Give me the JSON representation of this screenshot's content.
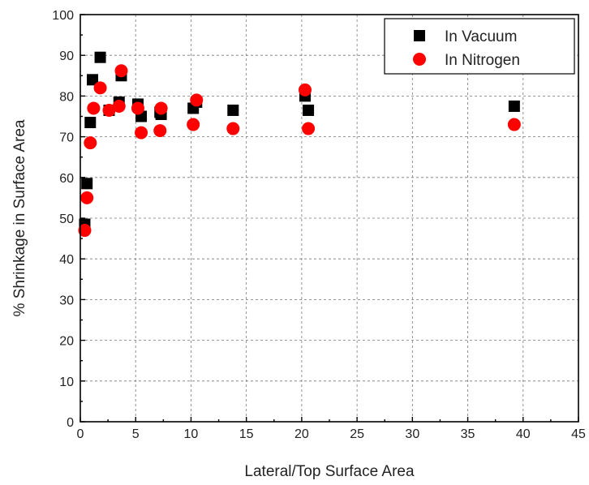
{
  "chart_data": {
    "type": "scatter",
    "title": "",
    "xlabel": "Lateral/Top Surface Area",
    "ylabel": "% Shrinkage in Surface Area",
    "xlim": [
      0,
      45
    ],
    "ylim": [
      0,
      100
    ],
    "xticks": [
      0,
      5,
      10,
      15,
      20,
      25,
      30,
      35,
      40,
      45
    ],
    "yticks": [
      0,
      10,
      20,
      30,
      40,
      50,
      60,
      70,
      80,
      90,
      100
    ],
    "grid": true,
    "legend_position": "top-right",
    "series": [
      {
        "name": "In Vacuum",
        "marker": "square",
        "color": "#000000",
        "points": [
          {
            "x": 0.4,
            "y": 48.5
          },
          {
            "x": 0.6,
            "y": 58.5
          },
          {
            "x": 0.9,
            "y": 73.5
          },
          {
            "x": 1.1,
            "y": 84.0
          },
          {
            "x": 1.8,
            "y": 89.5
          },
          {
            "x": 2.6,
            "y": 76.5
          },
          {
            "x": 3.5,
            "y": 78.5
          },
          {
            "x": 3.7,
            "y": 85.0
          },
          {
            "x": 5.2,
            "y": 78.0
          },
          {
            "x": 5.5,
            "y": 75.0
          },
          {
            "x": 7.3,
            "y": 75.5
          },
          {
            "x": 7.2,
            "y": 76.0
          },
          {
            "x": 10.2,
            "y": 77.0
          },
          {
            "x": 10.5,
            "y": 78.5
          },
          {
            "x": 13.8,
            "y": 76.5
          },
          {
            "x": 20.3,
            "y": 80.0
          },
          {
            "x": 20.6,
            "y": 76.5
          },
          {
            "x": 39.2,
            "y": 77.5
          }
        ]
      },
      {
        "name": "In Nitrogen",
        "marker": "circle",
        "color": "#ff0000",
        "points": [
          {
            "x": 0.4,
            "y": 47.0
          },
          {
            "x": 0.6,
            "y": 55.0
          },
          {
            "x": 0.9,
            "y": 68.5
          },
          {
            "x": 1.2,
            "y": 77.0
          },
          {
            "x": 1.8,
            "y": 82.0
          },
          {
            "x": 2.6,
            "y": 76.5
          },
          {
            "x": 3.5,
            "y": 77.5
          },
          {
            "x": 3.7,
            "y": 86.2
          },
          {
            "x": 5.2,
            "y": 77.0
          },
          {
            "x": 5.5,
            "y": 71.0
          },
          {
            "x": 7.2,
            "y": 71.5
          },
          {
            "x": 7.3,
            "y": 77.0
          },
          {
            "x": 10.2,
            "y": 73.0
          },
          {
            "x": 10.5,
            "y": 79.0
          },
          {
            "x": 13.8,
            "y": 72.0
          },
          {
            "x": 20.3,
            "y": 81.5
          },
          {
            "x": 20.6,
            "y": 72.0
          },
          {
            "x": 39.2,
            "y": 73.0
          }
        ]
      }
    ]
  }
}
